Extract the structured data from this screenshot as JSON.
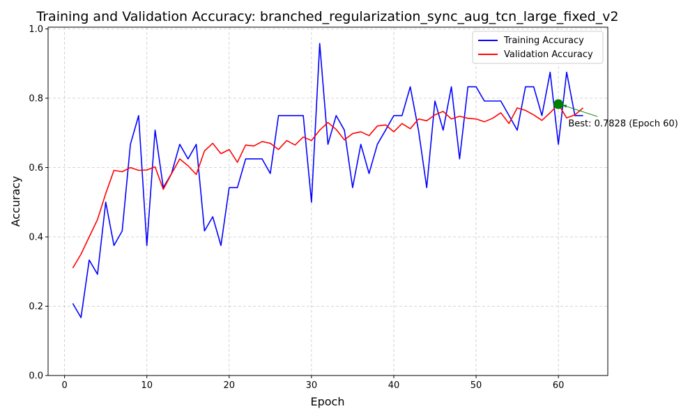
{
  "chart_data": {
    "type": "line",
    "title": "Training and Validation Accuracy: branched_regularization_sync_aug_tcn_large_fixed_v2",
    "xlabel": "Epoch",
    "ylabel": "Accuracy",
    "xlim": [
      -2,
      66
    ],
    "ylim": [
      0.0,
      1.005
    ],
    "xticks": [
      0,
      10,
      20,
      30,
      40,
      50,
      60
    ],
    "yticks": [
      0.0,
      0.2,
      0.4,
      0.6,
      0.8,
      1.0
    ],
    "xtick_labels": [
      "0",
      "10",
      "20",
      "30",
      "40",
      "50",
      "60"
    ],
    "ytick_labels": [
      "0.0",
      "0.2",
      "0.4",
      "0.6",
      "0.8",
      "1.0"
    ],
    "grid": true,
    "legend_position": "top-right",
    "x": [
      1,
      2,
      3,
      4,
      5,
      6,
      7,
      8,
      9,
      10,
      11,
      12,
      13,
      14,
      15,
      16,
      17,
      18,
      19,
      20,
      21,
      22,
      23,
      24,
      25,
      26,
      27,
      28,
      29,
      30,
      31,
      32,
      33,
      34,
      35,
      36,
      37,
      38,
      39,
      40,
      41,
      42,
      43,
      44,
      45,
      46,
      47,
      48,
      49,
      50,
      51,
      52,
      53,
      54,
      55,
      56,
      57,
      58,
      59,
      60,
      61,
      62,
      63
    ],
    "series": [
      {
        "name": "Training Accuracy",
        "color": "#0000ff",
        "values": [
          0.208,
          0.167,
          0.333,
          0.292,
          0.5,
          0.375,
          0.417,
          0.667,
          0.75,
          0.375,
          0.708,
          0.542,
          0.583,
          0.667,
          0.625,
          0.667,
          0.417,
          0.458,
          0.375,
          0.542,
          0.542,
          0.625,
          0.625,
          0.625,
          0.583,
          0.75,
          0.75,
          0.75,
          0.75,
          0.5,
          0.958,
          0.667,
          0.75,
          0.708,
          0.542,
          0.667,
          0.583,
          0.667,
          0.708,
          0.75,
          0.75,
          0.833,
          0.708,
          0.542,
          0.792,
          0.708,
          0.833,
          0.625,
          0.833,
          0.833,
          0.792,
          0.792,
          0.792,
          0.75,
          0.708,
          0.833,
          0.833,
          0.75,
          0.875,
          0.667,
          0.875,
          0.75,
          0.75
        ]
      },
      {
        "name": "Validation Accuracy",
        "color": "#ff0000",
        "values": [
          0.31,
          0.35,
          0.4,
          0.45,
          0.525,
          0.592,
          0.588,
          0.6,
          0.592,
          0.593,
          0.602,
          0.537,
          0.582,
          0.625,
          0.605,
          0.58,
          0.648,
          0.67,
          0.64,
          0.652,
          0.615,
          0.665,
          0.662,
          0.675,
          0.67,
          0.652,
          0.678,
          0.665,
          0.688,
          0.678,
          0.708,
          0.73,
          0.71,
          0.68,
          0.698,
          0.703,
          0.692,
          0.72,
          0.723,
          0.703,
          0.727,
          0.712,
          0.74,
          0.735,
          0.752,
          0.762,
          0.74,
          0.748,
          0.742,
          0.74,
          0.732,
          0.742,
          0.758,
          0.727,
          0.772,
          0.765,
          0.752,
          0.736,
          0.758,
          0.7828,
          0.743,
          0.752,
          0.772
        ]
      }
    ],
    "best": {
      "x": 60,
      "y": 0.7828,
      "color": "#008000",
      "label": "Best: 0.7828 (Epoch 60)",
      "text_x": 61.2,
      "text_y": 0.727
    }
  }
}
